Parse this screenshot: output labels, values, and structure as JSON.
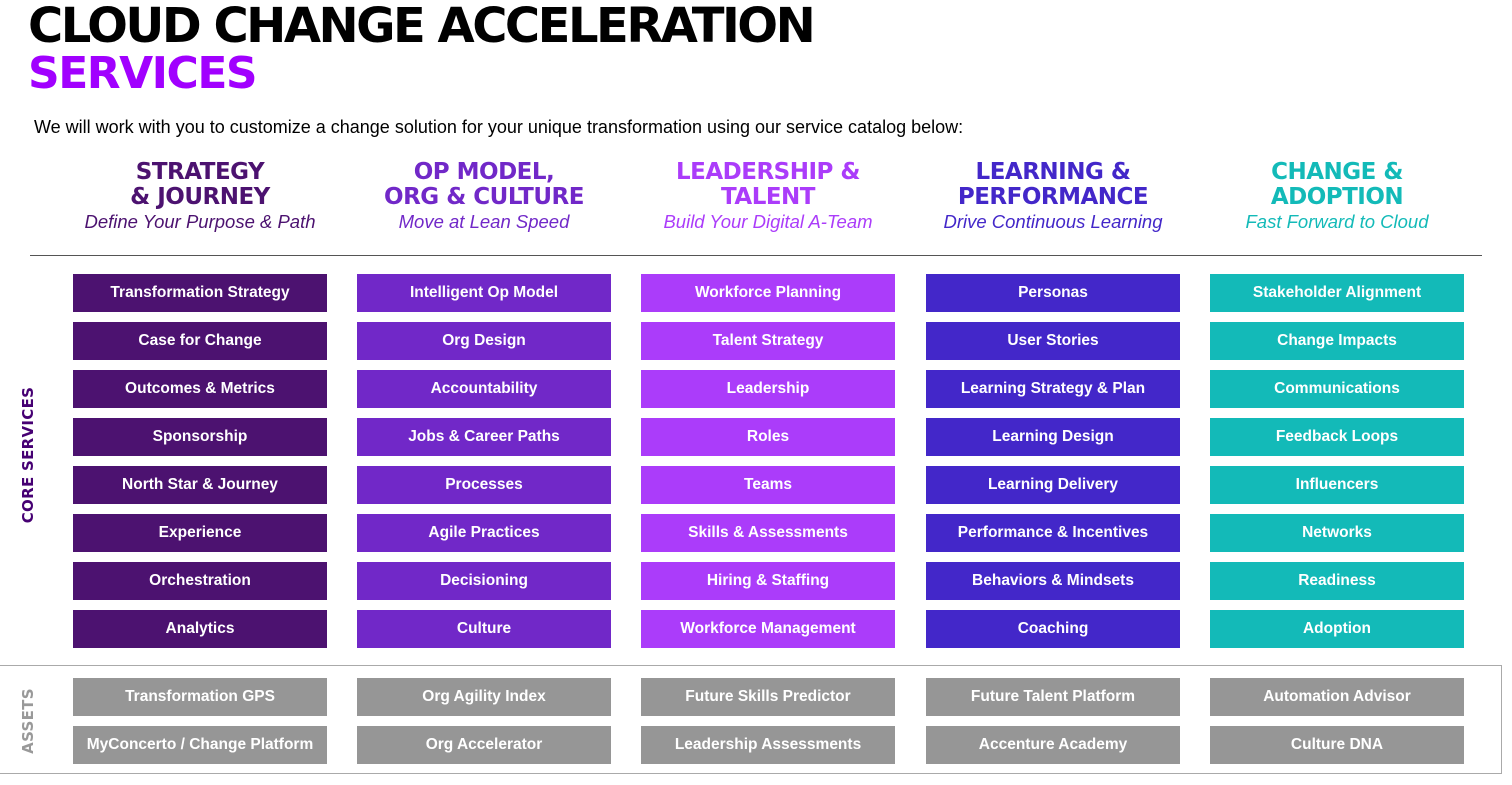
{
  "header": {
    "title_line1": "CLOUD CHANGE ACCELERATION",
    "title_line2": "SERVICES",
    "subtitle": "We will work with you to customize a change solution for your unique transformation using our service catalog below:"
  },
  "side_labels": {
    "core": "CORE SERVICES",
    "assets": "ASSETS"
  },
  "colors": {
    "title_accent": "#a100ff",
    "asset_box": "#969696"
  },
  "columns": [
    {
      "title": "STRATEGY\n& JOURNEY",
      "subtitle": "Define Your Purpose & Path",
      "color": "#4c1270",
      "services": [
        "Transformation Strategy",
        "Case for Change",
        "Outcomes & Metrics",
        "Sponsorship",
        "North Star & Journey",
        "Experience",
        "Orchestration",
        "Analytics"
      ],
      "assets": [
        "Transformation GPS",
        "MyConcerto / Change Platform"
      ]
    },
    {
      "title": "OP MODEL,\nORG & CULTURE",
      "subtitle": "Move at Lean Speed",
      "color": "#7128c8",
      "services": [
        "Intelligent Op Model",
        "Org Design",
        "Accountability",
        "Jobs & Career Paths",
        "Processes",
        "Agile Practices",
        "Decisioning",
        "Culture"
      ],
      "assets": [
        "Org Agility Index",
        "Org Accelerator"
      ]
    },
    {
      "title": "LEADERSHIP &\nTALENT",
      "subtitle": "Build Your Digital A-Team",
      "color": "#ab3cfa",
      "services": [
        "Workforce Planning",
        "Talent Strategy",
        "Leadership",
        "Roles",
        "Teams",
        "Skills & Assessments",
        "Hiring & Staffing",
        "Workforce Management"
      ],
      "assets": [
        "Future Skills Predictor",
        "Leadership Assessments"
      ]
    },
    {
      "title": "LEARNING &\nPERFORMANCE",
      "subtitle": "Drive Continuous Learning",
      "color": "#4327c9",
      "services": [
        "Personas",
        "User Stories",
        "Learning Strategy & Plan",
        "Learning Design",
        "Learning Delivery",
        "Performance & Incentives",
        "Behaviors & Mindsets",
        "Coaching"
      ],
      "assets": [
        "Future Talent Platform",
        "Accenture Academy"
      ]
    },
    {
      "title": "CHANGE &\nADOPTION",
      "subtitle": "Fast Forward to Cloud",
      "color": "#13bab8",
      "services": [
        "Stakeholder Alignment",
        "Change Impacts",
        "Communications",
        "Feedback Loops",
        "Influencers",
        "Networks",
        "Readiness",
        "Adoption"
      ],
      "assets": [
        "Automation Advisor",
        "Culture DNA"
      ]
    }
  ]
}
